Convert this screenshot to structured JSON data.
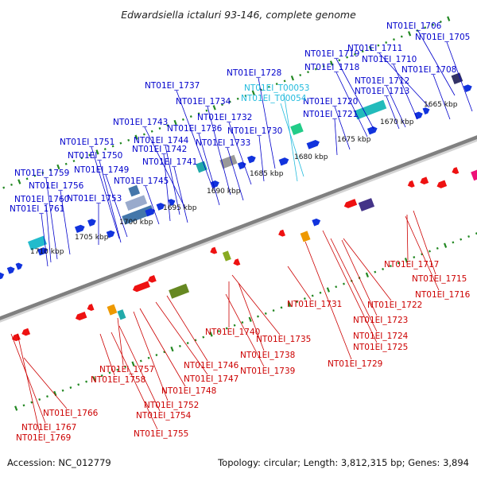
{
  "title": "Edwardsiella ictaluri 93-146, complete genome",
  "footer": {
    "accession": "Accession: NC_012779",
    "summary": "Topology: circular; Length: 3,812,315 bp; Genes: 3,894"
  },
  "colors": {
    "upper_label": "#0000cc",
    "trna_label": "#22bbdd",
    "lower_label": "#cc0000",
    "forward_arrow": "#1133dd",
    "reverse_arrow": "#ee1111",
    "tick": "#228822",
    "backbone": "#808080"
  },
  "scale_labels": [
    "1665 kbp",
    "1670 kbp",
    "1675 kbp",
    "1680 kbp",
    "1685 kbp",
    "1690 kbp",
    "1695 kbp",
    "1700 kbp",
    "1705 kbp",
    "1710 kbp"
  ],
  "upper_genes": [
    "NT01EI_1706",
    "NT01EI_1705",
    "NT01EI_1711",
    "NT01EI_1710",
    "NT01EI_1708",
    "NT01EI_1719",
    "NT01EI_1718",
    "NT01EI_1712",
    "NT01EI_1713",
    "NT01EI_1728",
    "NT01EI_1720",
    "NT01EI_1721",
    "NT01EI_1737",
    "NT01EI_1734",
    "NT01EI_1732",
    "NT01EI_1743",
    "NT01EI_1736",
    "NT01EI_1730",
    "NT01EI_1744",
    "NT01EI_1742",
    "NT01EI_1733",
    "NT01EI_1751",
    "NT01EI_1750",
    "NT01EI_1741",
    "NT01EI_1749",
    "NT01EI_1745",
    "NT01EI_1759",
    "NT01EI_1756",
    "NT01EI_1753",
    "NT01EI_1760",
    "NT01EI_1761"
  ],
  "trna_genes": [
    "NT01EI_T00053",
    "NT01EI_T00054"
  ],
  "lower_genes": [
    "NT01EI_1717",
    "NT01EI_1715",
    "NT01EI_1716",
    "NT01EI_1731",
    "NT01EI_1722",
    "NT01EI_1723",
    "NT01EI_1724",
    "NT01EI_1740",
    "NT01EI_1725",
    "NT01EI_1735",
    "NT01EI_1738",
    "NT01EI_1729",
    "NT01EI_1746",
    "NT01EI_1739",
    "NT01EI_1757",
    "NT01EI_1747",
    "NT01EI_1758",
    "NT01EI_1748",
    "NT01EI_1752",
    "NT01EI_1754",
    "NT01EI_1766",
    "NT01EI_1767",
    "NT01EI_1755",
    "NT01EI_1769"
  ]
}
